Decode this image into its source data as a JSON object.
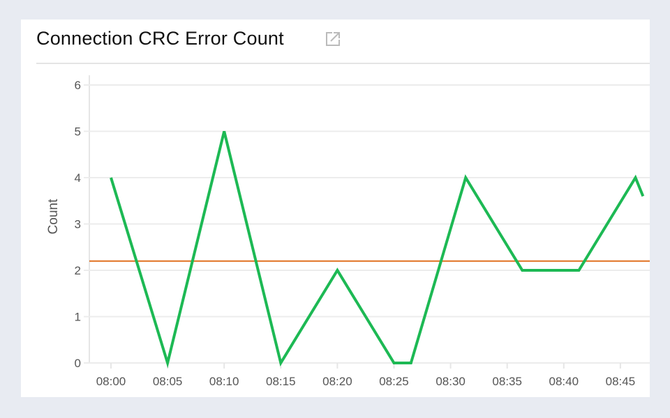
{
  "chart_data": {
    "type": "line",
    "title": "Connection CRC Error Count",
    "xlabel": "",
    "ylabel": "Count",
    "ylim": [
      0,
      6
    ],
    "yticks": [
      "0",
      "1",
      "2",
      "3",
      "4",
      "5",
      "6"
    ],
    "xticks": [
      "08:00",
      "08:05",
      "08:10",
      "08:15",
      "08:20",
      "08:25",
      "08:30",
      "08:35",
      "08:40",
      "08:45"
    ],
    "grid": true,
    "series": [
      {
        "color": "#1db954",
        "x": [
          "08:00:00",
          "08:05:00",
          "08:10:00",
          "08:15:00",
          "08:20:00",
          "08:25:00",
          "08:26:30",
          "08:31:20",
          "08:36:20",
          "08:41:20",
          "08:46:20",
          "08:47:00"
        ],
        "values": [
          4,
          0,
          5,
          0,
          2,
          0,
          0,
          4,
          2,
          2,
          4,
          3.6
        ]
      }
    ],
    "threshold": {
      "value": 2.2,
      "color": "#e07020"
    },
    "icons": {
      "title_action": "external-link-icon"
    }
  }
}
